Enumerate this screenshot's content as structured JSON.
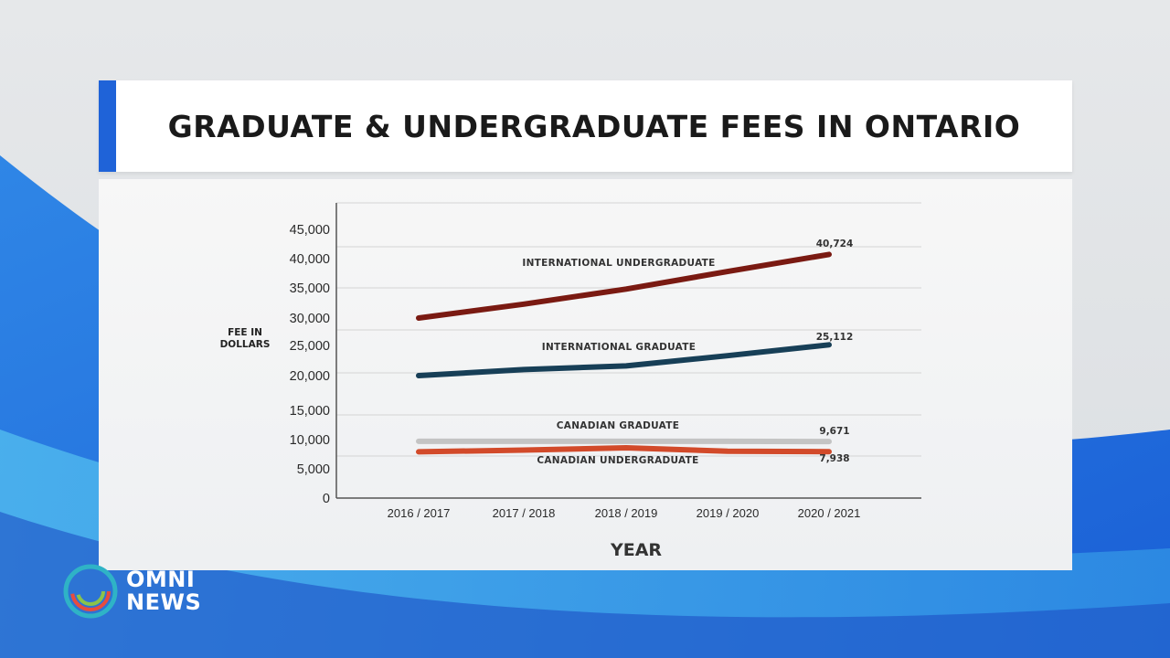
{
  "title": "GRADUATE & UNDERGRADUATE FEES IN ONTARIO",
  "logo": {
    "line1": "OMNI",
    "line2": "NEWS"
  },
  "colors": {
    "accent": "#1f63d8",
    "intl_undergrad": "#7a1a12",
    "intl_grad": "#173f57",
    "cdn_grad": "#c4c4c4",
    "cdn_undergrad": "#d24a2a"
  },
  "chart_data": {
    "type": "line",
    "title": "GRADUATE & UNDERGRADUATE FEES IN ONTARIO",
    "xlabel": "YEAR",
    "ylabel": [
      "FEE IN",
      "DOLLARS"
    ],
    "categories": [
      "2016 / 2017",
      "2017 / 2018",
      "2018 / 2019",
      "2019 / 2020",
      "2020 / 2021"
    ],
    "yticks": [
      0,
      5000,
      10000,
      15000,
      20000,
      25000,
      30000,
      35000,
      40000,
      45000
    ],
    "ytick_labels": [
      "0",
      "5,000",
      "10,000",
      "15,000",
      "20,000",
      "25,000",
      "30,000",
      "35,000",
      "40,000",
      "45,000"
    ],
    "ylim": [
      0,
      45000
    ],
    "grid": true,
    "series": [
      {
        "name": "INTERNATIONAL UNDERGRADUATE",
        "color": "#7a1a12",
        "values": [
          30000,
          32300,
          34800,
          37800,
          40724
        ],
        "end_label": "40,724"
      },
      {
        "name": "INTERNATIONAL GRADUATE",
        "color": "#173f57",
        "values": [
          20000,
          21000,
          21600,
          23300,
          25112
        ],
        "end_label": "25,112"
      },
      {
        "name": "CANADIAN GRADUATE",
        "color": "#c4c4c4",
        "values": [
          9700,
          9700,
          9700,
          9700,
          9671
        ],
        "end_label": "9,671"
      },
      {
        "name": "CANADIAN UNDERGRADUATE",
        "color": "#d24a2a",
        "values": [
          7900,
          8200,
          8600,
          8000,
          7938
        ],
        "end_label": "7,938"
      }
    ]
  }
}
